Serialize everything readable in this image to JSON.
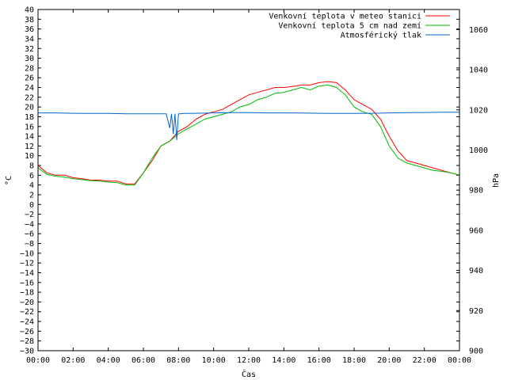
{
  "chart_data": {
    "type": "line",
    "xlabel": "Čas",
    "ylabel_left": "°C",
    "ylabel_right": "hPa",
    "x_ticks": [
      "00:00",
      "02:00",
      "04:00",
      "06:00",
      "08:00",
      "10:00",
      "12:00",
      "14:00",
      "16:00",
      "18:00",
      "20:00",
      "22:00",
      "00:00"
    ],
    "x_range_hours": [
      0,
      24
    ],
    "ylim_left": [
      -30,
      40
    ],
    "ylim_right": [
      900,
      1070
    ],
    "y_left_ticks": [
      40,
      38,
      36,
      34,
      32,
      30,
      28,
      26,
      24,
      22,
      20,
      18,
      16,
      14,
      12,
      10,
      8,
      6,
      4,
      2,
      0,
      -2,
      -4,
      -6,
      -8,
      -10,
      -12,
      -14,
      -16,
      -18,
      -20,
      -22,
      -24,
      -26,
      -28,
      -30
    ],
    "y_left_tick_labels": [
      "40",
      "38",
      "36",
      "34",
      "32",
      "30",
      "28",
      "26",
      "24",
      "22",
      "20",
      "18",
      "16",
      "14",
      "12",
      "10",
      "8",
      "6",
      "4",
      "2",
      "0",
      "−2",
      "−4",
      "−6",
      "−8",
      "−10",
      "−12",
      "−14",
      "−16",
      "−18",
      "−20",
      "−22",
      "−24",
      "−26",
      "−28",
      "−30"
    ],
    "y_right_ticks": [
      1060,
      1040,
      1020,
      1000,
      980,
      960,
      940,
      920,
      900
    ],
    "grid": false,
    "legend_placement": "top-right",
    "series": [
      {
        "name": "Venkovní teplota v meteo stanici",
        "axis": "left",
        "color": "#ff0000",
        "x": [
          0,
          0.5,
          1,
          1.5,
          2,
          2.5,
          3,
          3.5,
          4,
          4.5,
          5,
          5.5,
          6,
          6.5,
          7,
          7.5,
          8,
          8.5,
          9,
          9.5,
          10,
          10.5,
          11,
          11.5,
          12,
          12.5,
          13,
          13.5,
          14,
          14.5,
          15,
          15.5,
          16,
          16.5,
          17,
          17.5,
          18,
          18.5,
          19,
          19.5,
          20,
          20.5,
          21,
          21.5,
          22,
          22.5,
          23,
          23.5,
          24
        ],
        "y": [
          8,
          6.5,
          6,
          6,
          5.5,
          5.3,
          5,
          5,
          4.8,
          4.8,
          4.2,
          4.2,
          6.5,
          9,
          12,
          13,
          15,
          16,
          17.5,
          18.5,
          19,
          19.5,
          20.5,
          21.5,
          22.5,
          23,
          23.5,
          24,
          24,
          24.2,
          24.5,
          24.5,
          25,
          25.2,
          25,
          23.5,
          21.5,
          20.5,
          19.5,
          17.5,
          14,
          11,
          9,
          8.5,
          8,
          7.5,
          7,
          6.5,
          6
        ]
      },
      {
        "name": "Venkovní teplota 5 cm nad zemí",
        "axis": "left",
        "color": "#00bb00",
        "x": [
          0,
          0.5,
          1,
          1.5,
          2,
          2.5,
          3,
          3.5,
          4,
          4.5,
          5,
          5.5,
          6,
          6.5,
          7,
          7.5,
          8,
          8.5,
          9,
          9.5,
          10,
          10.5,
          11,
          11.5,
          12,
          12.5,
          13,
          13.5,
          14,
          14.5,
          15,
          15.5,
          16,
          16.5,
          17,
          17.5,
          18,
          18.5,
          19,
          19.5,
          20,
          20.5,
          21,
          21.5,
          22,
          22.5,
          23,
          23.5,
          24
        ],
        "y": [
          7.5,
          6.2,
          5.8,
          5.6,
          5.3,
          5.1,
          4.9,
          4.8,
          4.6,
          4.5,
          4,
          4,
          6.5,
          9.5,
          12,
          13,
          14.5,
          15.5,
          16.5,
          17.5,
          18,
          18.5,
          19,
          20,
          20.5,
          21.5,
          22,
          22.8,
          23,
          23.5,
          24,
          23.5,
          24.3,
          24.5,
          24,
          22.5,
          20,
          19,
          18.5,
          16,
          12,
          9.5,
          8.5,
          8,
          7.5,
          7,
          6.8,
          6.5,
          6
        ]
      },
      {
        "name": "Atmosférický tlak",
        "axis": "right",
        "color": "#0066cc",
        "x": [
          0,
          1,
          2,
          3,
          4,
          5,
          6,
          7,
          7.3,
          7.5,
          7.6,
          7.7,
          7.8,
          7.9,
          8.0,
          8.1,
          8.3,
          9,
          10,
          11,
          12,
          13,
          14,
          15,
          16,
          17,
          18,
          19,
          20,
          21,
          22,
          23,
          24
        ],
        "y": [
          1018.5,
          1018.5,
          1018.3,
          1018.2,
          1018.2,
          1018,
          1018,
          1018,
          1018,
          1011,
          1018,
          1008,
          1018,
          1005,
          1018,
          1018,
          1018.2,
          1018.3,
          1018.5,
          1018.6,
          1018.6,
          1018.5,
          1018.5,
          1018.4,
          1018.3,
          1018.2,
          1018.2,
          1018.3,
          1018.5,
          1018.6,
          1018.7,
          1018.8,
          1018.8
        ]
      }
    ]
  }
}
